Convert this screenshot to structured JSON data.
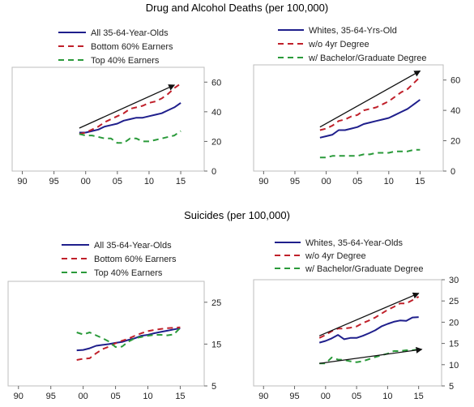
{
  "titles": {
    "top": "Drug and Alcohol Deaths (per 100,000)",
    "bottom": "Suicides (per 100,000)"
  },
  "colors": {
    "blue": "#1f1f8c",
    "red": "#c0202a",
    "green": "#2a9a3a",
    "arrow": "#111111"
  },
  "x_ticks": [
    "90",
    "95",
    "00",
    "05",
    "10",
    "15"
  ],
  "chart_data": [
    {
      "type": "line",
      "id": "drug-all",
      "x": [
        1999,
        2000,
        2001,
        2002,
        2003,
        2004,
        2005,
        2006,
        2007,
        2008,
        2009,
        2010,
        2011,
        2012,
        2013,
        2014,
        2015
      ],
      "ylim": [
        0,
        70
      ],
      "yticks": [
        "0",
        "20",
        "40",
        "60"
      ],
      "ytick_values": [
        0,
        20,
        40,
        60
      ],
      "series": [
        {
          "name": "All 35-64-Year-Olds",
          "color": "blue",
          "style": "solid",
          "values": [
            26,
            26,
            27,
            28,
            30,
            31,
            32,
            34,
            35,
            36,
            36,
            37,
            38,
            39,
            41,
            43,
            46
          ]
        },
        {
          "name": "Bottom 60% Earners",
          "color": "red",
          "style": "dashed",
          "values": [
            25,
            26,
            28,
            30,
            33,
            35,
            37,
            39,
            42,
            43,
            44,
            46,
            47,
            49,
            52,
            56,
            59
          ]
        },
        {
          "name": "Top 40% Earners",
          "color": "green",
          "style": "dashed",
          "values": [
            25,
            24,
            24,
            23,
            22,
            22,
            19,
            19,
            22,
            22,
            20,
            20,
            21,
            22,
            23,
            24,
            27
          ]
        }
      ],
      "arrows": [
        {
          "x1": 1999,
          "y1": 29,
          "x2": 2014,
          "y2": 58
        }
      ]
    },
    {
      "type": "line",
      "id": "drug-whites",
      "x": [
        1999,
        2000,
        2001,
        2002,
        2003,
        2004,
        2005,
        2006,
        2007,
        2008,
        2009,
        2010,
        2011,
        2012,
        2013,
        2014,
        2015
      ],
      "ylim": [
        0,
        70
      ],
      "yticks": [
        "0",
        "20",
        "40",
        "60"
      ],
      "ytick_values": [
        0,
        20,
        40,
        60
      ],
      "series": [
        {
          "name": "Whites, 35-64-Yrs-Old",
          "color": "blue",
          "style": "solid",
          "values": [
            22,
            23,
            24,
            27,
            27,
            28,
            29,
            31,
            32,
            33,
            34,
            35,
            37,
            39,
            41,
            44,
            47
          ]
        },
        {
          "name": "w/o 4yr Degree",
          "color": "red",
          "style": "dashed",
          "values": [
            27,
            28,
            30,
            33,
            34,
            36,
            37,
            40,
            41,
            42,
            44,
            46,
            49,
            52,
            54,
            58,
            62
          ]
        },
        {
          "name": "w/ Bachelor/Graduate Degree",
          "color": "green",
          "style": "dashed",
          "values": [
            9,
            9,
            10,
            10,
            10,
            10,
            10,
            11,
            11,
            12,
            12,
            12,
            13,
            13,
            13,
            14,
            14
          ]
        }
      ],
      "arrows": [
        {
          "x1": 1999,
          "y1": 29,
          "x2": 2015,
          "y2": 66
        }
      ]
    },
    {
      "type": "line",
      "id": "suicide-all",
      "x": [
        1999,
        2000,
        2001,
        2002,
        2003,
        2004,
        2005,
        2006,
        2007,
        2008,
        2009,
        2010,
        2011,
        2012,
        2013,
        2014,
        2015
      ],
      "ylim": [
        5,
        30
      ],
      "yticks": [
        "5",
        "15",
        "25"
      ],
      "ytick_values": [
        5,
        15,
        25
      ],
      "series": [
        {
          "name": "All 35-64-Year-Olds",
          "color": "blue",
          "style": "solid",
          "values": [
            13.5,
            13.6,
            14,
            14.6,
            14.8,
            15,
            15.3,
            15.5,
            16,
            16.4,
            17,
            17.2,
            17.6,
            17.9,
            18.2,
            18.5,
            18.8
          ]
        },
        {
          "name": "Bottom 60% Earners",
          "color": "red",
          "style": "dashed",
          "values": [
            11.2,
            11.5,
            11.6,
            12.8,
            13.8,
            14.4,
            15.2,
            15.8,
            16.3,
            17,
            17.6,
            18.1,
            18.4,
            18.6,
            18.8,
            18.9,
            19
          ]
        },
        {
          "name": "Top 40% Earners",
          "color": "green",
          "style": "dashed",
          "values": [
            17.8,
            17.3,
            17.8,
            17.1,
            16.4,
            15.6,
            14.3,
            14.4,
            15.6,
            16.4,
            16.7,
            17,
            17.2,
            17.2,
            17.1,
            17.3,
            18.9
          ]
        }
      ],
      "arrows": []
    },
    {
      "type": "line",
      "id": "suicide-whites",
      "x": [
        1999,
        2000,
        2001,
        2002,
        2003,
        2004,
        2005,
        2006,
        2007,
        2008,
        2009,
        2010,
        2011,
        2012,
        2013,
        2014,
        2015
      ],
      "ylim": [
        5,
        30
      ],
      "yticks": [
        "5",
        "10",
        "15",
        "20",
        "25",
        "30"
      ],
      "ytick_values": [
        5,
        10,
        15,
        20,
        25,
        30
      ],
      "series": [
        {
          "name": "Whites, 35-64-Year-Olds",
          "color": "blue",
          "style": "solid",
          "values": [
            15.2,
            15.6,
            16.2,
            17,
            16,
            16.3,
            16.3,
            16.8,
            17.4,
            18.1,
            19,
            19.6,
            20.1,
            20.4,
            20.3,
            21.1,
            21.2
          ]
        },
        {
          "name": "w/o 4yr Degree",
          "color": "red",
          "style": "dashed",
          "values": [
            16.3,
            17,
            17.9,
            18.5,
            18.5,
            18.7,
            19,
            19.8,
            20.4,
            21.1,
            22,
            22.9,
            23.6,
            24.4,
            24.4,
            25.2,
            26
          ]
        },
        {
          "name": "w/ Bachelor/Graduate Degree",
          "color": "green",
          "style": "dashed",
          "values": [
            10.3,
            10.3,
            11.7,
            11.2,
            11.1,
            10.8,
            10.6,
            10.8,
            11.3,
            11.8,
            12.2,
            12.6,
            13.2,
            13.2,
            13.4,
            13.4,
            13.6
          ]
        }
      ],
      "arrows": [
        {
          "x1": 1999,
          "y1": 16.8,
          "x2": 2015,
          "y2": 26.8
        },
        {
          "x1": 1999,
          "y1": 10.3,
          "x2": 2015.5,
          "y2": 13.6
        }
      ]
    }
  ]
}
